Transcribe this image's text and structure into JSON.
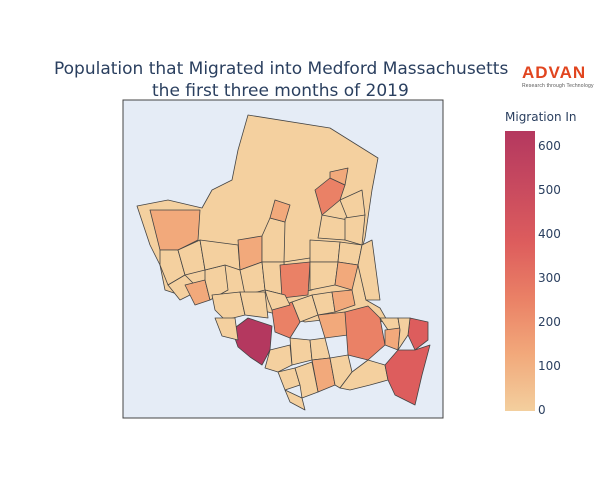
{
  "title": {
    "line1": "Population that Migrated into Medford Massachusetts",
    "line2": "the first three months of 2019"
  },
  "logo": {
    "brand": "ADVAN",
    "tagline": "Research through Technology"
  },
  "colorbar": {
    "title": "Migration In",
    "ticks": [
      "0",
      "100",
      "200",
      "300",
      "400",
      "500",
      "600"
    ],
    "range": [
      0,
      630
    ],
    "colorscale": [
      "#f3cf9e",
      "#f2a97b",
      "#ea8166",
      "#dd5d5d",
      "#c84a5f",
      "#b4385f"
    ]
  },
  "map": {
    "background": "#e5ecf6",
    "border_color": "#444444",
    "region_outline": "#444444"
  }
}
